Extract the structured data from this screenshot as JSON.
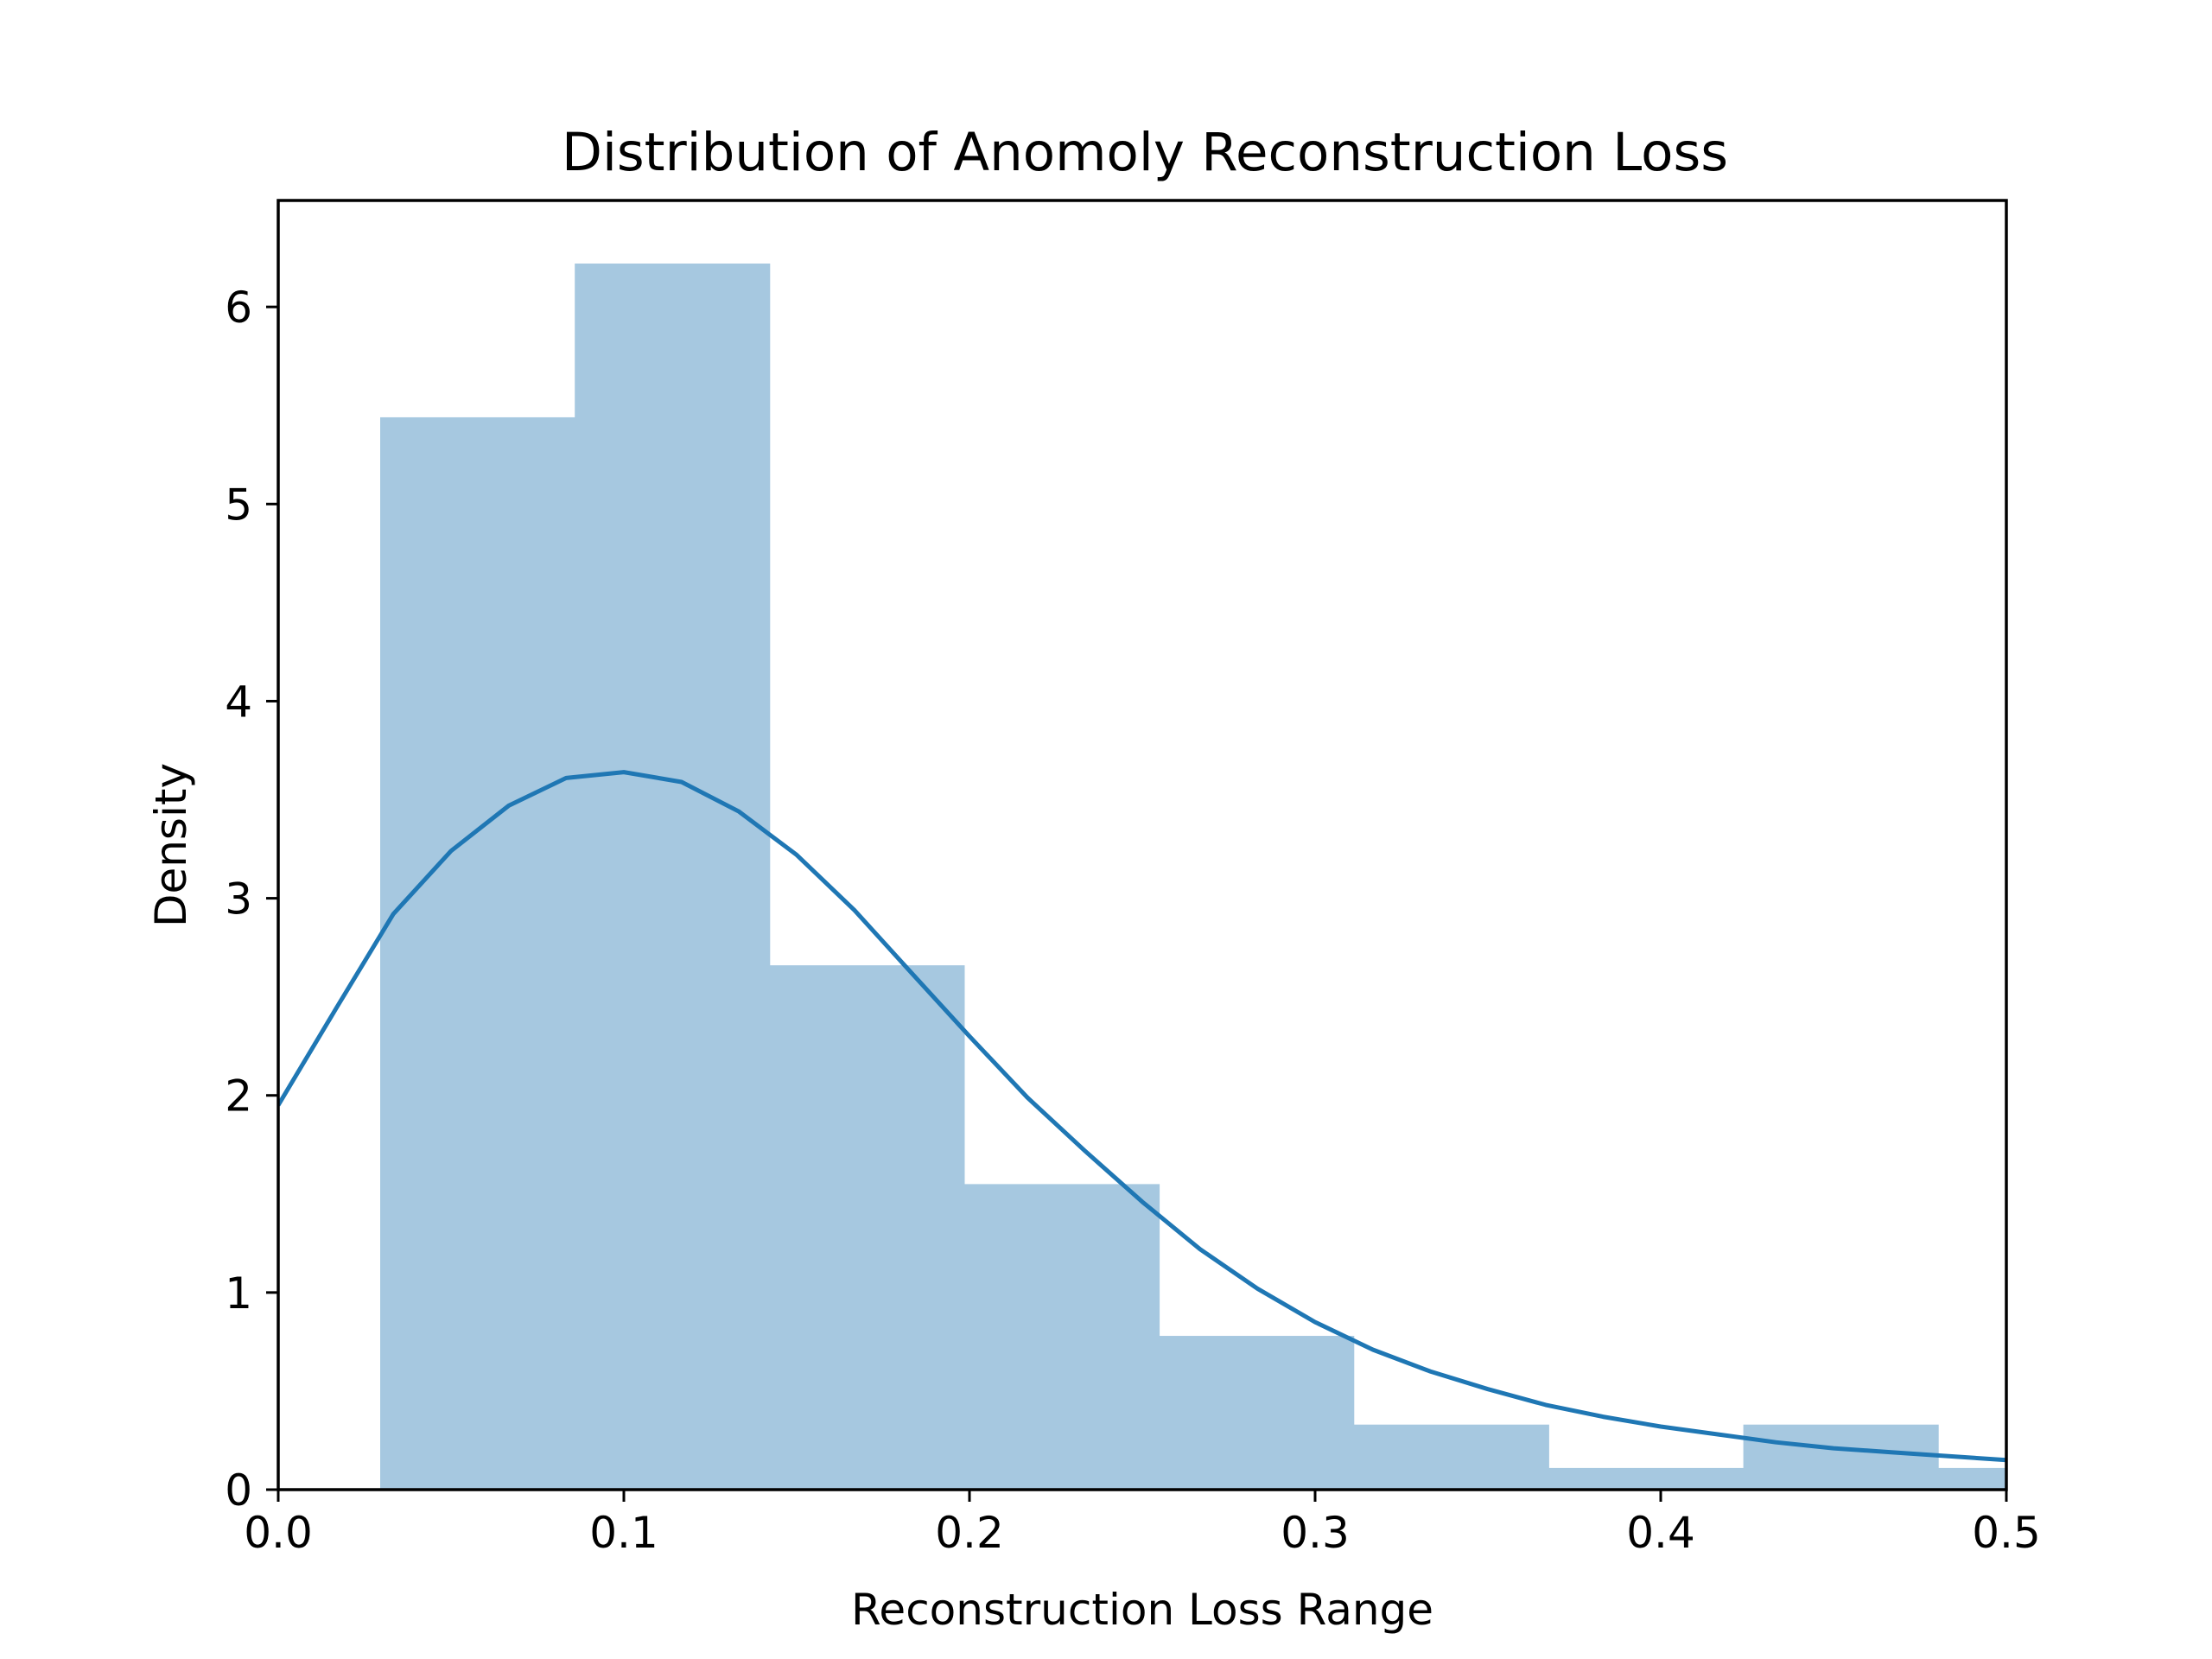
{
  "chart_data": {
    "type": "bar",
    "title": "Distribution of Anomoly Reconstruction Loss",
    "xlabel": "Reconstruction Loss Range",
    "ylabel": "Density",
    "xlim": [
      0,
      0.5
    ],
    "ylim": [
      0,
      6.54
    ],
    "grid": false,
    "x_ticks": [
      "0.0",
      "0.1",
      "0.2",
      "0.3",
      "0.4",
      "0.5"
    ],
    "y_ticks": [
      "0",
      "1",
      "2",
      "3",
      "4",
      "5",
      "6"
    ],
    "bar_color": "#a6c8e0",
    "line_color": "#1f77b4",
    "histogram": {
      "bin_edges": [
        0.0295,
        0.0858,
        0.1422,
        0.1985,
        0.2549,
        0.3112,
        0.3676,
        0.4239,
        0.4803,
        0.5366
      ],
      "density": [
        5.44,
        6.22,
        2.66,
        1.55,
        0.78,
        0.33,
        0.11,
        0.33,
        0.11
      ]
    },
    "kde": {
      "x": [
        0.0,
        0.0167,
        0.0333,
        0.05,
        0.0667,
        0.0833,
        0.1,
        0.1167,
        0.1333,
        0.15,
        0.1667,
        0.1833,
        0.2,
        0.2167,
        0.2333,
        0.25,
        0.2667,
        0.2833,
        0.3,
        0.3167,
        0.3333,
        0.35,
        0.3667,
        0.3833,
        0.4,
        0.4167,
        0.4333,
        0.45,
        0.4667,
        0.4833,
        0.5
      ],
      "y": [
        1.95,
        2.44,
        2.92,
        3.24,
        3.47,
        3.61,
        3.64,
        3.59,
        3.44,
        3.22,
        2.94,
        2.62,
        2.3,
        1.99,
        1.72,
        1.46,
        1.22,
        1.02,
        0.85,
        0.71,
        0.6,
        0.51,
        0.43,
        0.37,
        0.32,
        0.28,
        0.24,
        0.21,
        0.19,
        0.17,
        0.15
      ]
    }
  }
}
